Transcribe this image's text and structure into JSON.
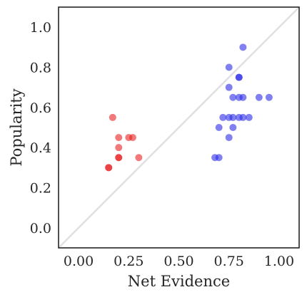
{
  "chart_data": {
    "type": "scatter",
    "title": "",
    "xlabel": "Net Evidence",
    "ylabel": "Popularity",
    "xlim": [
      -0.1,
      1.1
    ],
    "ylim": [
      -0.1,
      1.1
    ],
    "xticks": [
      0.0,
      0.25,
      0.5,
      0.75,
      1.0
    ],
    "xtick_labels": [
      "0.00",
      "0.25",
      "0.50",
      "0.75",
      "1.00"
    ],
    "yticks": [
      0.0,
      0.2,
      0.4,
      0.6,
      0.8,
      1.0
    ],
    "ytick_labels": [
      "0.0",
      "0.2",
      "0.4",
      "0.6",
      "0.8",
      "1.0"
    ],
    "grid": false,
    "legend": "none",
    "reference_line": {
      "from": [
        -0.1,
        -0.1
      ],
      "to": [
        1.1,
        1.1
      ],
      "color": "#e0e0e0"
    },
    "series": [
      {
        "color": "#e8201f",
        "points": [
          {
            "x": 0.17,
            "y": 0.55
          },
          {
            "x": 0.2,
            "y": 0.45
          },
          {
            "x": 0.25,
            "y": 0.45
          },
          {
            "x": 0.27,
            "y": 0.45
          },
          {
            "x": 0.2,
            "y": 0.4
          },
          {
            "x": 0.2,
            "y": 0.35
          },
          {
            "x": 0.2,
            "y": 0.35
          },
          {
            "x": 0.3,
            "y": 0.35
          },
          {
            "x": 0.15,
            "y": 0.3
          },
          {
            "x": 0.15,
            "y": 0.3
          }
        ]
      },
      {
        "color": "#2b2be8",
        "points": [
          {
            "x": 0.82,
            "y": 0.9
          },
          {
            "x": 0.75,
            "y": 0.8
          },
          {
            "x": 0.8,
            "y": 0.75
          },
          {
            "x": 0.8,
            "y": 0.75
          },
          {
            "x": 0.75,
            "y": 0.7
          },
          {
            "x": 0.77,
            "y": 0.65
          },
          {
            "x": 0.8,
            "y": 0.65
          },
          {
            "x": 0.82,
            "y": 0.65
          },
          {
            "x": 0.9,
            "y": 0.65
          },
          {
            "x": 0.95,
            "y": 0.65
          },
          {
            "x": 0.72,
            "y": 0.55
          },
          {
            "x": 0.75,
            "y": 0.55
          },
          {
            "x": 0.77,
            "y": 0.55
          },
          {
            "x": 0.8,
            "y": 0.55
          },
          {
            "x": 0.82,
            "y": 0.55
          },
          {
            "x": 0.85,
            "y": 0.55
          },
          {
            "x": 0.7,
            "y": 0.5
          },
          {
            "x": 0.77,
            "y": 0.5
          },
          {
            "x": 0.75,
            "y": 0.45
          },
          {
            "x": 0.68,
            "y": 0.35
          },
          {
            "x": 0.7,
            "y": 0.35
          }
        ]
      }
    ]
  }
}
